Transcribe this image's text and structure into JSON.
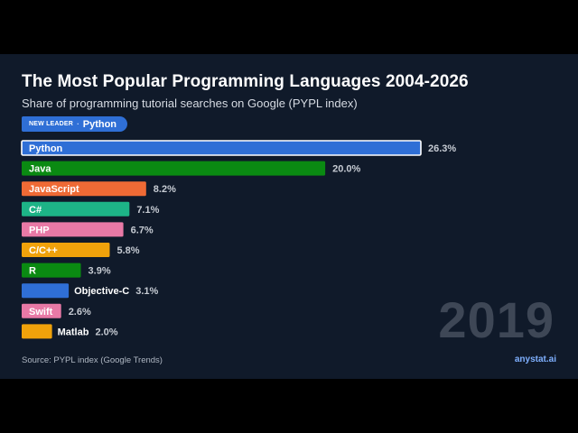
{
  "header": {
    "title": "The Most Popular Programming Languages 2004-2026",
    "subtitle": "Share of programming tutorial searches on Google (PYPL index)",
    "leader_badge": {
      "label": "NEW LEADER",
      "separator": "·",
      "name": "Python"
    }
  },
  "year": "2019",
  "footer": {
    "source": "Source: PYPL index (Google Trends)",
    "brand": "anystat.ai"
  },
  "chart_data": {
    "type": "bar",
    "orientation": "horizontal",
    "title": "The Most Popular Programming Languages 2004-2026",
    "subtitle": "Share of programming tutorial searches on Google (PYPL index)",
    "unit": "%",
    "highlighted": "Python",
    "categories": [
      "Python",
      "Java",
      "JavaScript",
      "C#",
      "PHP",
      "C/C++",
      "R",
      "Objective-C",
      "Swift",
      "Matlab"
    ],
    "values": [
      26.3,
      20.0,
      8.2,
      7.1,
      6.7,
      5.8,
      3.9,
      3.1,
      2.6,
      2.0
    ],
    "value_labels": [
      "26.3%",
      "20.0%",
      "8.2%",
      "7.1%",
      "6.7%",
      "5.8%",
      "3.9%",
      "3.1%",
      "2.6%",
      "2.0%"
    ],
    "colors": [
      "#2f6fd6",
      "#0a8a12",
      "#ef6a35",
      "#1db487",
      "#e879a6",
      "#f0a20b",
      "#0a8a12",
      "#2f6fd6",
      "#e879a6",
      "#f0a20b"
    ],
    "xlim": [
      0,
      26.3
    ],
    "grid": false,
    "legend": "none"
  }
}
